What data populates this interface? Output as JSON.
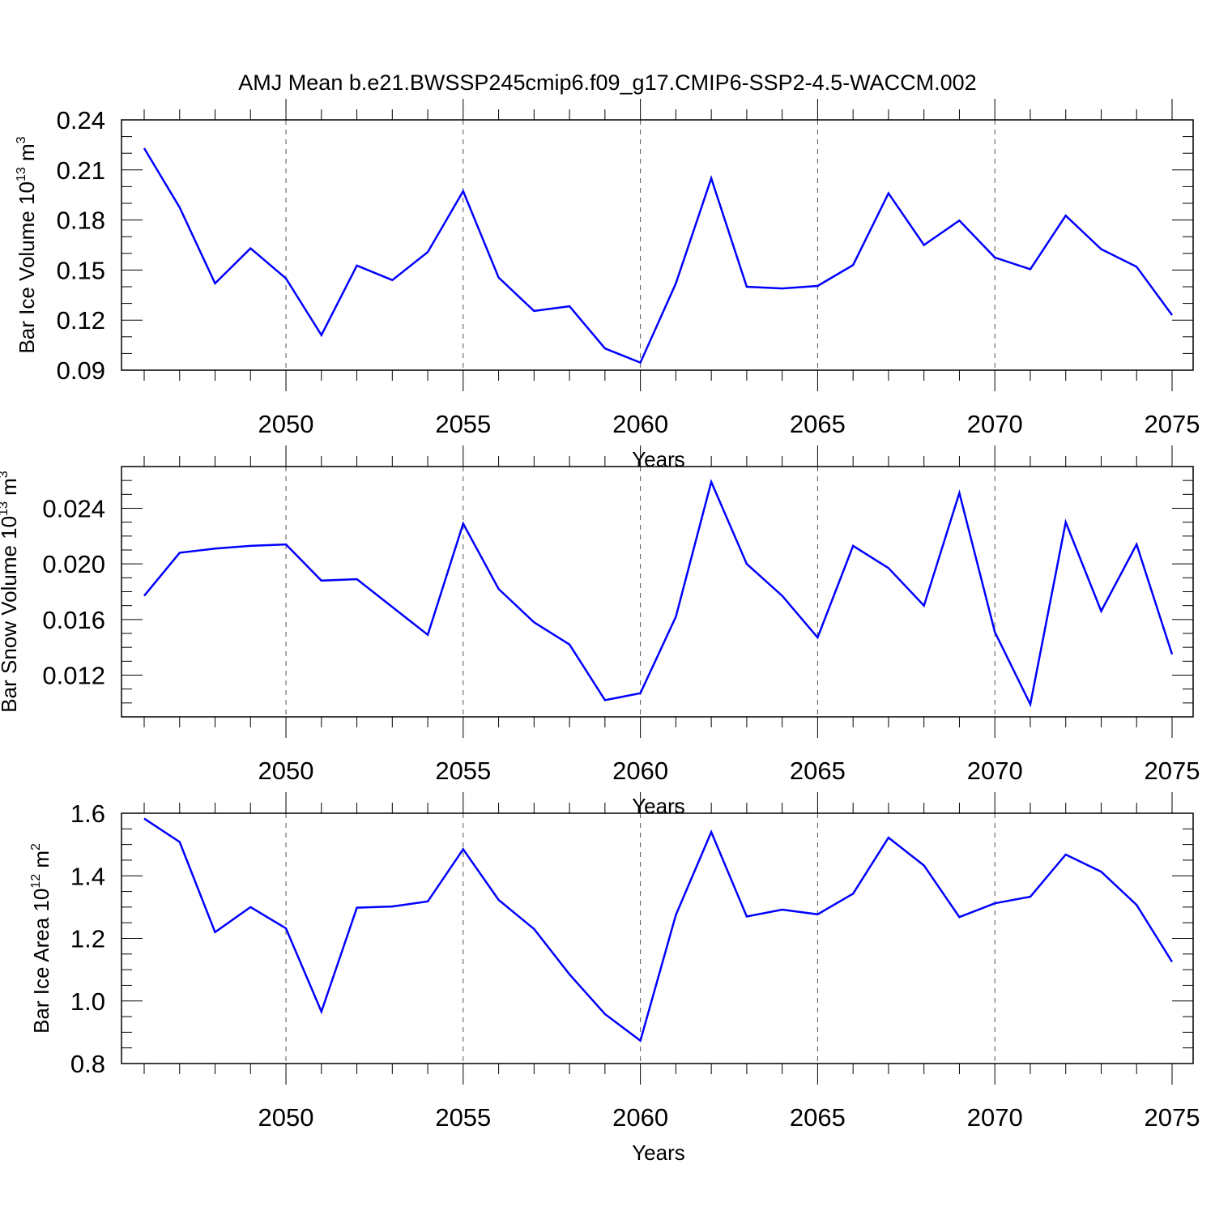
{
  "title": "AMJ Mean b.e21.BWSSP245cmip6.f09_g17.CMIP6-SSP2-4.5-WACCM.002",
  "colors": {
    "line": "#0000ff",
    "axis": "#000000",
    "grid": "#555555"
  },
  "chart_data": [
    {
      "type": "line",
      "title": "AMJ Mean b.e21.BWSSP245cmip6.f09_g17.CMIP6-SSP2-4.5-WACCM.002",
      "xlabel": "Years",
      "ylabel": {
        "prefix": "Bar Ice Volume 10",
        "exp": "13",
        "unit": " m",
        "unit_exp": "3"
      },
      "xlim": [
        2046,
        2075
      ],
      "ylim": [
        0.09,
        0.24
      ],
      "x_ticks": [
        2050,
        2055,
        2060,
        2065,
        2070,
        2075
      ],
      "x_tick_labels": [
        "2050",
        "2055",
        "2060",
        "2065",
        "2070",
        "2075"
      ],
      "y_ticks": [
        0.09,
        0.12,
        0.15,
        0.18,
        0.21,
        0.24
      ],
      "y_tick_labels": [
        "0.09",
        "0.12",
        "0.15",
        "0.18",
        "0.21",
        "0.24"
      ],
      "y_minor_step": 0.01,
      "grid": "vertical dashed at major x ticks",
      "x": [
        2046,
        2047,
        2048,
        2049,
        2050,
        2051,
        2052,
        2053,
        2054,
        2055,
        2056,
        2057,
        2058,
        2059,
        2060,
        2061,
        2062,
        2063,
        2064,
        2065,
        2066,
        2067,
        2068,
        2069,
        2070,
        2071,
        2072,
        2073,
        2074,
        2075
      ],
      "series": [
        {
          "name": "Bar Ice Volume",
          "values": [
            0.223,
            0.1875,
            0.142,
            0.163,
            0.145,
            0.111,
            0.1527,
            0.144,
            0.1608,
            0.1973,
            0.1455,
            0.1255,
            0.1283,
            0.103,
            0.0945,
            0.142,
            0.205,
            0.14,
            0.139,
            0.1405,
            0.153,
            0.196,
            0.165,
            0.1797,
            0.1575,
            0.1505,
            0.1826,
            0.1625,
            0.152,
            0.123
          ]
        }
      ]
    },
    {
      "type": "line",
      "xlabel": "Years",
      "ylabel": {
        "prefix": "Bar Snow Volume 10",
        "exp": "13",
        "unit": " m",
        "unit_exp": "3"
      },
      "xlim": [
        2046,
        2075
      ],
      "ylim": [
        0.009,
        0.027
      ],
      "x_ticks": [
        2050,
        2055,
        2060,
        2065,
        2070,
        2075
      ],
      "x_tick_labels": [
        "2050",
        "2055",
        "2060",
        "2065",
        "2070",
        "2075"
      ],
      "y_ticks": [
        0.012,
        0.016,
        0.02,
        0.024
      ],
      "y_tick_labels": [
        "0.012",
        "0.016",
        "0.020",
        "0.024"
      ],
      "y_minor_step": 0.001,
      "grid": "vertical dashed at major x ticks",
      "x": [
        2046,
        2047,
        2048,
        2049,
        2050,
        2051,
        2052,
        2053,
        2054,
        2055,
        2056,
        2057,
        2058,
        2059,
        2060,
        2061,
        2062,
        2063,
        2064,
        2065,
        2066,
        2067,
        2068,
        2069,
        2070,
        2071,
        2072,
        2073,
        2074,
        2075
      ],
      "series": [
        {
          "name": "Bar Snow Volume",
          "values": [
            0.0177,
            0.0208,
            0.0211,
            0.0213,
            0.0214,
            0.0188,
            0.0189,
            0.0169,
            0.0149,
            0.0229,
            0.0182,
            0.0158,
            0.0142,
            0.0102,
            0.0107,
            0.0162,
            0.0259,
            0.02,
            0.0177,
            0.0147,
            0.0213,
            0.0197,
            0.017,
            0.0251,
            0.0151,
            0.0099,
            0.023,
            0.0166,
            0.0214,
            0.0135
          ]
        }
      ]
    },
    {
      "type": "line",
      "xlabel": "Years",
      "ylabel": {
        "prefix": "Bar Ice Area 10",
        "exp": "12",
        "unit": " m",
        "unit_exp": "2"
      },
      "xlim": [
        2046,
        2075
      ],
      "ylim": [
        0.8,
        1.6
      ],
      "x_ticks": [
        2050,
        2055,
        2060,
        2065,
        2070,
        2075
      ],
      "x_tick_labels": [
        "2050",
        "2055",
        "2060",
        "2065",
        "2070",
        "2075"
      ],
      "y_ticks": [
        0.8,
        1.0,
        1.2,
        1.4,
        1.6
      ],
      "y_tick_labels": [
        "0.8",
        "1.0",
        "1.2",
        "1.4",
        "1.6"
      ],
      "y_minor_step": 0.05,
      "grid": "vertical dashed at major x ticks",
      "x": [
        2046,
        2047,
        2048,
        2049,
        2050,
        2051,
        2052,
        2053,
        2054,
        2055,
        2056,
        2057,
        2058,
        2059,
        2060,
        2061,
        2062,
        2063,
        2064,
        2065,
        2066,
        2067,
        2068,
        2069,
        2070,
        2071,
        2072,
        2073,
        2074,
        2075
      ],
      "series": [
        {
          "name": "Bar Ice Area",
          "values": [
            1.583,
            1.508,
            1.22,
            1.3,
            1.232,
            0.966,
            1.298,
            1.302,
            1.318,
            1.485,
            1.323,
            1.23,
            1.085,
            0.958,
            0.873,
            1.275,
            1.54,
            1.27,
            1.292,
            1.277,
            1.343,
            1.522,
            1.433,
            1.268,
            1.312,
            1.333,
            1.468,
            1.413,
            1.307,
            1.125
          ]
        }
      ]
    }
  ]
}
